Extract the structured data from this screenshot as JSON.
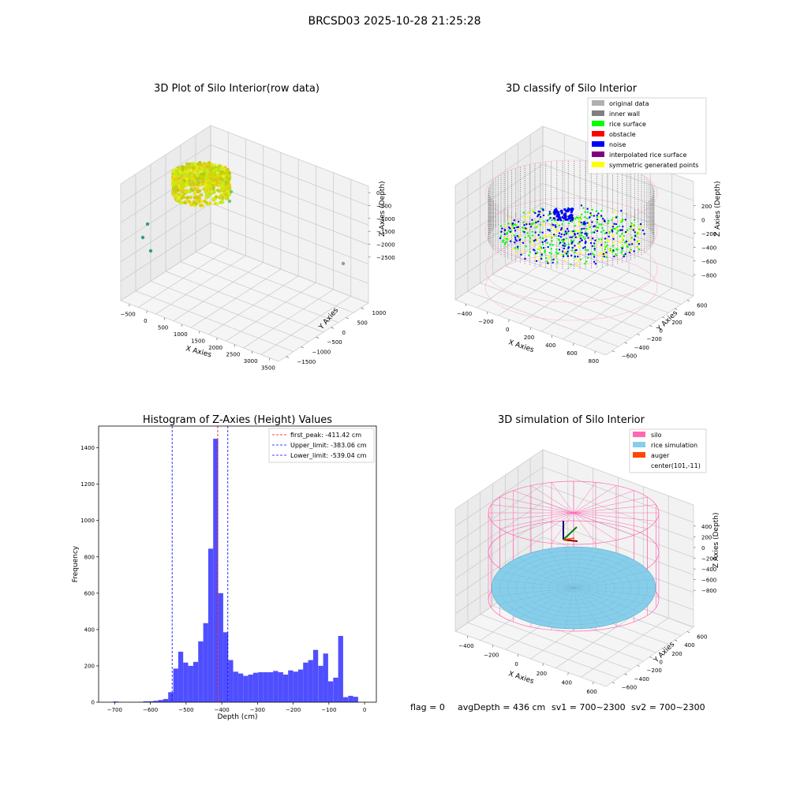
{
  "figure": {
    "suptitle": "BRCSD03 2025-10-28 21:25:28",
    "footer": {
      "flag": "flag = 0",
      "avg_depth": "avgDepth = 436 cm",
      "sv1": "sv1 = 700~2300",
      "sv2": "sv2 = 700~2300"
    }
  },
  "colors": {
    "original": "#b0b0b0",
    "inner_wall": "#808080",
    "rice_surface": "#00ff00",
    "obstacle": "#ff0000",
    "noise": "#0000ff",
    "interpolated": "#800080",
    "symmetric": "#ffff00",
    "silo": "#ff69b4",
    "rice_sim": "#87ceeb",
    "auger": "#ff4500",
    "hist_bar": "#4f4fff",
    "peak_line": "#ff0000",
    "limit_line": "#0000ff",
    "grid": "#c8c8c8"
  },
  "chart_data": [
    {
      "type": "scatter3d",
      "title": "3D Plot of Silo Interior(row data)",
      "xlabel": "X Axies",
      "ylabel": "Y Axies",
      "zlabel": "Z Axies (Depth)",
      "x_ticks": [
        "−500",
        "0",
        "500",
        "1000",
        "1500",
        "2000",
        "2500",
        "3000",
        "3500"
      ],
      "y_ticks": [
        "−1500",
        "−1000",
        "−500",
        "0",
        "500",
        "1000"
      ],
      "z_ticks": [
        "−2500",
        "−2000",
        "−1500",
        "−1000",
        "−500",
        "0"
      ],
      "grid": true
    },
    {
      "type": "scatter3d",
      "title": "3D classify of Silo Interior",
      "xlabel": "X Axies",
      "ylabel": "Y Axies",
      "zlabel": "Z Axies (Depth)",
      "x_ticks": [
        "−400",
        "−200",
        "0",
        "200",
        "400",
        "600",
        "800"
      ],
      "y_ticks": [
        "−600",
        "−400",
        "−200",
        "0",
        "200",
        "400",
        "600"
      ],
      "z_ticks": [
        "−800",
        "−600",
        "−400",
        "−200",
        "0",
        "200"
      ],
      "legend": [
        {
          "label": "original data",
          "color": "#b0b0b0"
        },
        {
          "label": "inner wall",
          "color": "#808080"
        },
        {
          "label": "rice surface",
          "color": "#00ff00"
        },
        {
          "label": "obstacle",
          "color": "#ff0000"
        },
        {
          "label": "noise",
          "color": "#0000ff"
        },
        {
          "label": "interpolated rice surface",
          "color": "#800080"
        },
        {
          "label": "symmetric generated points",
          "color": "#ffff00"
        }
      ],
      "legend_position": "top-right",
      "grid": true
    },
    {
      "type": "bar",
      "title": "Histogram of Z-Axies (Height) Values",
      "xlabel": "Depth (cm)",
      "ylabel": "Frequency",
      "xlim": [
        -745,
        33
      ],
      "ylim": [
        0,
        1520
      ],
      "x_ticks": [
        -700,
        -600,
        -500,
        -400,
        -300,
        -200,
        -100,
        0
      ],
      "y_ticks": [
        0,
        200,
        400,
        600,
        800,
        1000,
        1200,
        1400
      ],
      "bin_width": 14,
      "bins": [
        {
          "x": -697,
          "y": 4
        },
        {
          "x": -683,
          "y": 1
        },
        {
          "x": -669,
          "y": 0
        },
        {
          "x": -655,
          "y": 1
        },
        {
          "x": -641,
          "y": 0
        },
        {
          "x": -627,
          "y": 2
        },
        {
          "x": -613,
          "y": 5
        },
        {
          "x": -599,
          "y": 5
        },
        {
          "x": -585,
          "y": 8
        },
        {
          "x": -571,
          "y": 12
        },
        {
          "x": -557,
          "y": 18
        },
        {
          "x": -543,
          "y": 55
        },
        {
          "x": -529,
          "y": 185
        },
        {
          "x": -515,
          "y": 278
        },
        {
          "x": -501,
          "y": 218
        },
        {
          "x": -487,
          "y": 200
        },
        {
          "x": -473,
          "y": 222
        },
        {
          "x": -459,
          "y": 335
        },
        {
          "x": -445,
          "y": 435
        },
        {
          "x": -431,
          "y": 845
        },
        {
          "x": -417,
          "y": 1450
        },
        {
          "x": -403,
          "y": 600
        },
        {
          "x": -389,
          "y": 385
        },
        {
          "x": -375,
          "y": 232
        },
        {
          "x": -361,
          "y": 168
        },
        {
          "x": -347,
          "y": 158
        },
        {
          "x": -333,
          "y": 145
        },
        {
          "x": -319,
          "y": 152
        },
        {
          "x": -305,
          "y": 162
        },
        {
          "x": -291,
          "y": 165
        },
        {
          "x": -277,
          "y": 165
        },
        {
          "x": -263,
          "y": 165
        },
        {
          "x": -249,
          "y": 172
        },
        {
          "x": -235,
          "y": 165
        },
        {
          "x": -221,
          "y": 152
        },
        {
          "x": -207,
          "y": 175
        },
        {
          "x": -193,
          "y": 168
        },
        {
          "x": -179,
          "y": 180
        },
        {
          "x": -165,
          "y": 218
        },
        {
          "x": -151,
          "y": 232
        },
        {
          "x": -137,
          "y": 288
        },
        {
          "x": -123,
          "y": 200
        },
        {
          "x": -109,
          "y": 268
        },
        {
          "x": -95,
          "y": 115
        },
        {
          "x": -81,
          "y": 135
        },
        {
          "x": -67,
          "y": 365
        },
        {
          "x": -53,
          "y": 28
        },
        {
          "x": -39,
          "y": 35
        },
        {
          "x": -25,
          "y": 30
        }
      ],
      "vlines": [
        {
          "label": "first_peak: -411.42 cm",
          "x": -411.42,
          "color": "#ff0000"
        },
        {
          "label": "Upper_limit: -383.06 cm",
          "x": -383.06,
          "color": "#0000ff"
        },
        {
          "label": "Lower_limit: -539.04 cm",
          "x": -539.04,
          "color": "#0000ff"
        }
      ],
      "legend_position": "top-right",
      "grid": false
    },
    {
      "type": "surface3d",
      "title": "3D simulation of Silo Interior",
      "xlabel": "X Axies",
      "ylabel": "Y Axies",
      "zlabel": "Z Axies (Depth)",
      "x_ticks": [
        "−400",
        "−200",
        "0",
        "200",
        "400",
        "600"
      ],
      "y_ticks": [
        "−600",
        "−400",
        "−200",
        "0",
        "200",
        "400",
        "600"
      ],
      "z_ticks": [
        "−800",
        "−600",
        "−400",
        "−200",
        "0",
        "200",
        "400"
      ],
      "legend": [
        {
          "label": "silo",
          "color": "#ff69b4"
        },
        {
          "label": "rice simulation",
          "color": "#87ceeb"
        },
        {
          "label": "auger",
          "color": "#ff4500"
        },
        {
          "label": "center(101,-11)",
          "color": ""
        }
      ],
      "legend_position": "top-right",
      "grid": true
    }
  ]
}
